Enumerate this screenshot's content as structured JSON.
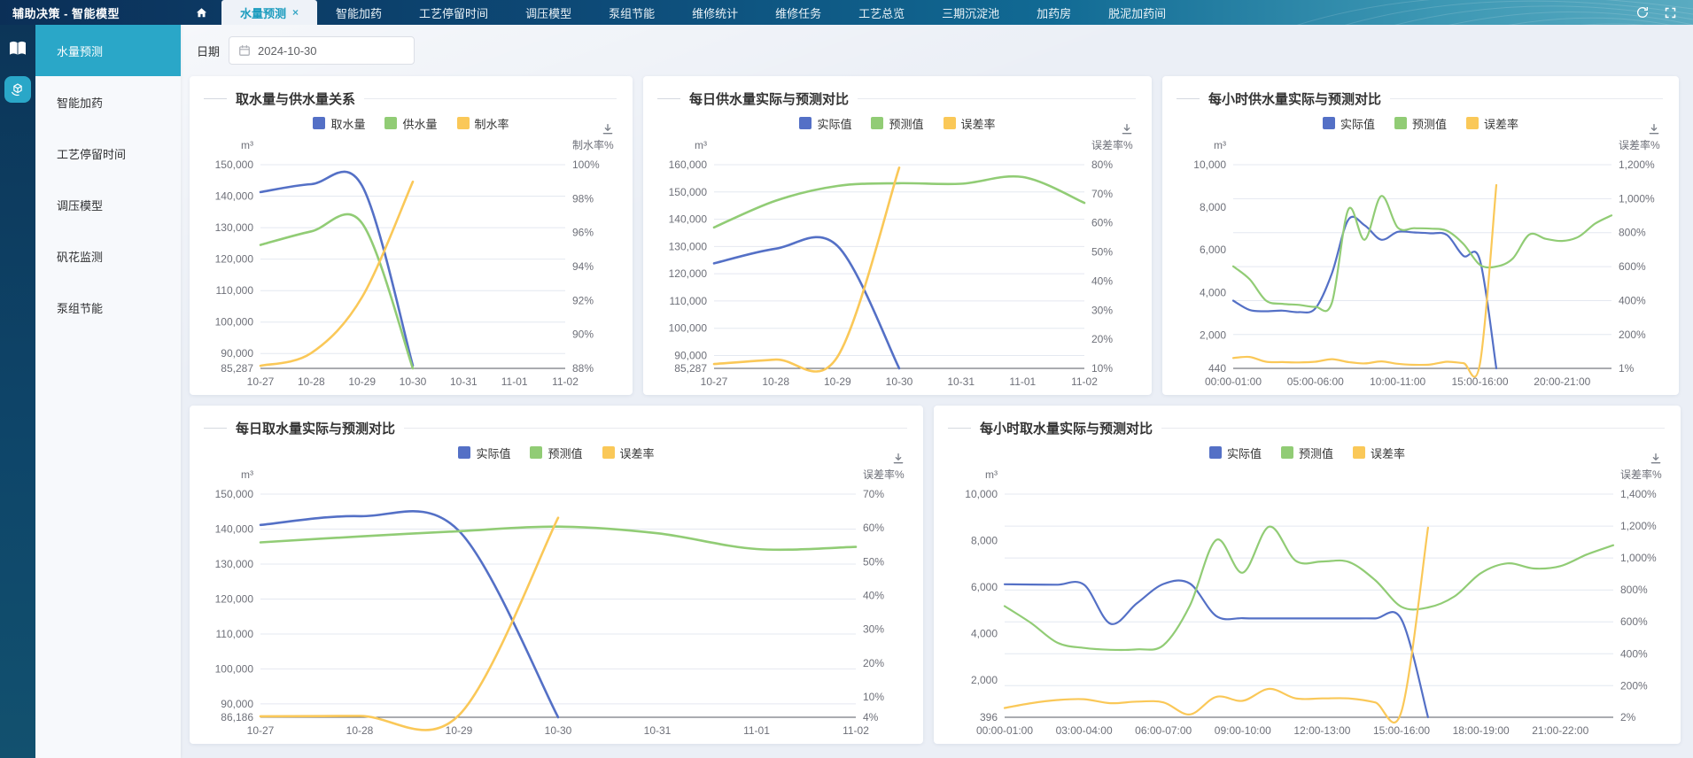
{
  "app": {
    "title": "辅助决策 - 智能模型"
  },
  "topnav": {
    "tabs": [
      {
        "label": "水量预测",
        "active": true,
        "closable": true
      },
      {
        "label": "智能加药",
        "active": false
      },
      {
        "label": "工艺停留时间",
        "active": false
      },
      {
        "label": "调压模型",
        "active": false
      },
      {
        "label": "泵组节能",
        "active": false
      },
      {
        "label": "维修统计",
        "active": false
      },
      {
        "label": "维修任务",
        "active": false
      },
      {
        "label": "工艺总览",
        "active": false
      },
      {
        "label": "三期沉淀池",
        "active": false
      },
      {
        "label": "加药房",
        "active": false
      },
      {
        "label": "脱泥加药间",
        "active": false
      }
    ],
    "icons": [
      "refresh-icon",
      "fullscreen-icon"
    ]
  },
  "sidebar": {
    "items": [
      {
        "label": "水量预测",
        "active": true
      },
      {
        "label": "智能加药",
        "active": false
      },
      {
        "label": "工艺停留时间",
        "active": false
      },
      {
        "label": "调压模型",
        "active": false
      },
      {
        "label": "矾花监测",
        "active": false
      },
      {
        "label": "泵组节能",
        "active": false
      }
    ]
  },
  "filters": {
    "date_label": "日期",
    "date_value": "2024-10-30"
  },
  "colors": {
    "series_blue": "#5470C6",
    "series_green": "#91CC75",
    "series_yellow": "#FAC858",
    "active_teal": "#2aa7c8",
    "axis_text": "#6E7079",
    "grid": "#e4e8f0"
  },
  "chart_data": [
    {
      "type": "line",
      "title": "取水量与供水量关系",
      "grid_axis": "left",
      "left_axis": {
        "unit": "m³",
        "min": 85287,
        "max": 150000,
        "ticks": [
          {
            "v": 85287,
            "label": "85,287"
          },
          {
            "v": 90000,
            "label": "90,000"
          },
          {
            "v": 100000,
            "label": "100,000"
          },
          {
            "v": 110000,
            "label": "110,000"
          },
          {
            "v": 120000,
            "label": "120,000"
          },
          {
            "v": 130000,
            "label": "130,000"
          },
          {
            "v": 140000,
            "label": "140,000"
          },
          {
            "v": 150000,
            "label": "150,000"
          }
        ]
      },
      "right_axis": {
        "title": "制水率%",
        "min": 88,
        "max": 100,
        "ticks": [
          {
            "v": 88,
            "label": "88%"
          },
          {
            "v": 90,
            "label": "90%"
          },
          {
            "v": 92,
            "label": "92%"
          },
          {
            "v": 94,
            "label": "94%"
          },
          {
            "v": 96,
            "label": "96%"
          },
          {
            "v": 98,
            "label": "98%"
          },
          {
            "v": 100,
            "label": "100%"
          }
        ]
      },
      "categories": [
        "10-27",
        "10-28",
        "10-29",
        "10-30",
        "10-31",
        "11-01",
        "11-02"
      ],
      "x_tick_indices": [
        0,
        1,
        2,
        3,
        4,
        5,
        6
      ],
      "series": [
        {
          "name": "取水量",
          "color": "#5470C6",
          "axis": "left",
          "values": [
            141300,
            143800,
            143300,
            86186,
            null,
            null,
            null
          ]
        },
        {
          "name": "供水量",
          "color": "#91CC75",
          "axis": "left",
          "values": [
            124500,
            128800,
            131400,
            85287,
            null,
            null,
            null
          ]
        },
        {
          "name": "制水率",
          "color": "#FAC858",
          "axis": "right",
          "values": [
            88.15,
            88.9,
            92.2,
            99.0,
            null,
            null,
            null
          ]
        }
      ]
    },
    {
      "type": "line",
      "title": "每日供水量实际与预测对比",
      "grid_axis": "left",
      "left_axis": {
        "unit": "m³",
        "min": 85287,
        "max": 160000,
        "ticks": [
          {
            "v": 85287,
            "label": "85,287"
          },
          {
            "v": 90000,
            "label": "90,000"
          },
          {
            "v": 100000,
            "label": "100,000"
          },
          {
            "v": 110000,
            "label": "110,000"
          },
          {
            "v": 120000,
            "label": "120,000"
          },
          {
            "v": 130000,
            "label": "130,000"
          },
          {
            "v": 140000,
            "label": "140,000"
          },
          {
            "v": 150000,
            "label": "150,000"
          },
          {
            "v": 160000,
            "label": "160,000"
          }
        ]
      },
      "right_axis": {
        "title": "误差率%",
        "min": 10,
        "max": 80,
        "ticks": [
          {
            "v": 10,
            "label": "10%"
          },
          {
            "v": 20,
            "label": "20%"
          },
          {
            "v": 30,
            "label": "30%"
          },
          {
            "v": 40,
            "label": "40%"
          },
          {
            "v": 50,
            "label": "50%"
          },
          {
            "v": 60,
            "label": "60%"
          },
          {
            "v": 70,
            "label": "70%"
          },
          {
            "v": 80,
            "label": "80%"
          }
        ]
      },
      "categories": [
        "10-27",
        "10-28",
        "10-29",
        "10-30",
        "10-31",
        "11-01",
        "11-02"
      ],
      "x_tick_indices": [
        0,
        1,
        2,
        3,
        4,
        5,
        6
      ],
      "series": [
        {
          "name": "实际值",
          "color": "#5470C6",
          "axis": "left",
          "values": [
            123800,
            129200,
            130200,
            85287,
            null,
            null,
            null
          ]
        },
        {
          "name": "预测值",
          "color": "#91CC75",
          "axis": "left",
          "values": [
            137000,
            146800,
            152200,
            153200,
            153000,
            155500,
            146000
          ]
        },
        {
          "name": "误差率",
          "color": "#FAC858",
          "axis": "right",
          "values": [
            11.5,
            13,
            14,
            79,
            null,
            null,
            null
          ]
        }
      ]
    },
    {
      "type": "line",
      "title": "每小时供水量实际与预测对比",
      "grid_axis": "right",
      "left_axis": {
        "unit": "m³",
        "min": 440,
        "max": 10000,
        "ticks": [
          {
            "v": 440,
            "label": "440"
          },
          {
            "v": 2000,
            "label": "2,000"
          },
          {
            "v": 4000,
            "label": "4,000"
          },
          {
            "v": 6000,
            "label": "6,000"
          },
          {
            "v": 8000,
            "label": "8,000"
          },
          {
            "v": 10000,
            "label": "10,000"
          }
        ]
      },
      "right_axis": {
        "title": "误差率%",
        "min": 1,
        "max": 1200,
        "ticks": [
          {
            "v": 1,
            "label": "1%"
          },
          {
            "v": 200,
            "label": "200%"
          },
          {
            "v": 400,
            "label": "400%"
          },
          {
            "v": 600,
            "label": "600%"
          },
          {
            "v": 800,
            "label": "800%"
          },
          {
            "v": 1000,
            "label": "1,000%"
          },
          {
            "v": 1200,
            "label": "1,200%"
          }
        ]
      },
      "categories": [
        "00:00-01:00",
        "01:00-02:00",
        "02:00-03:00",
        "03:00-04:00",
        "04:00-05:00",
        "05:00-06:00",
        "06:00-07:00",
        "07:00-08:00",
        "08:00-09:00",
        "09:00-10:00",
        "10:00-11:00",
        "11:00-12:00",
        "12:00-13:00",
        "13:00-14:00",
        "14:00-15:00",
        "15:00-16:00",
        "16:00-17:00",
        "17:00-18:00",
        "18:00-19:00",
        "19:00-20:00",
        "20:00-21:00",
        "21:00-22:00",
        "22:00-23:00",
        "23:00-24:00"
      ],
      "x_tick_indices": [
        0,
        5,
        10,
        15,
        20
      ],
      "series": [
        {
          "name": "实际值",
          "color": "#5470C6",
          "axis": "left",
          "values": [
            3620,
            3180,
            3120,
            3150,
            3080,
            3260,
            4900,
            7420,
            7150,
            6480,
            6850,
            6820,
            6780,
            6700,
            5720,
            5520,
            440,
            null,
            null,
            null,
            null,
            null,
            null,
            null
          ]
        },
        {
          "name": "预测值",
          "color": "#91CC75",
          "axis": "left",
          "values": [
            5230,
            4620,
            3620,
            3470,
            3420,
            3330,
            3520,
            7900,
            6480,
            8530,
            7050,
            7020,
            7000,
            6900,
            6280,
            5300,
            5220,
            5600,
            6720,
            6520,
            6420,
            6620,
            7230,
            7620
          ]
        },
        {
          "name": "误差率",
          "color": "#FAC858",
          "axis": "right",
          "values": [
            62,
            68,
            40,
            38,
            36,
            40,
            55,
            38,
            30,
            42,
            28,
            22,
            24,
            40,
            32,
            28,
            1080,
            null,
            null,
            null,
            null,
            null,
            null,
            null
          ]
        }
      ]
    },
    {
      "type": "line",
      "title": "每日取水量实际与预测对比",
      "grid_axis": "left",
      "left_axis": {
        "unit": "m³",
        "min": 86186,
        "max": 150000,
        "ticks": [
          {
            "v": 86186,
            "label": "86,186"
          },
          {
            "v": 90000,
            "label": "90,000"
          },
          {
            "v": 100000,
            "label": "100,000"
          },
          {
            "v": 110000,
            "label": "110,000"
          },
          {
            "v": 120000,
            "label": "120,000"
          },
          {
            "v": 130000,
            "label": "130,000"
          },
          {
            "v": 140000,
            "label": "140,000"
          },
          {
            "v": 150000,
            "label": "150,000"
          }
        ]
      },
      "right_axis": {
        "title": "误差率%",
        "min": 4,
        "max": 70,
        "ticks": [
          {
            "v": 4,
            "label": "4%"
          },
          {
            "v": 10,
            "label": "10%"
          },
          {
            "v": 20,
            "label": "20%"
          },
          {
            "v": 30,
            "label": "30%"
          },
          {
            "v": 40,
            "label": "40%"
          },
          {
            "v": 50,
            "label": "50%"
          },
          {
            "v": 60,
            "label": "60%"
          },
          {
            "v": 70,
            "label": "70%"
          }
        ]
      },
      "categories": [
        "10-27",
        "10-28",
        "10-29",
        "10-30",
        "10-31",
        "11-01",
        "11-02"
      ],
      "x_tick_indices": [
        0,
        1,
        2,
        3,
        4,
        5,
        6
      ],
      "series": [
        {
          "name": "实际值",
          "color": "#5470C6",
          "axis": "left",
          "values": [
            141200,
            143700,
            139500,
            86186,
            null,
            null,
            null
          ]
        },
        {
          "name": "预测值",
          "color": "#91CC75",
          "axis": "left",
          "values": [
            136200,
            137900,
            139400,
            140700,
            138800,
            134300,
            134900
          ]
        },
        {
          "name": "误差率",
          "color": "#FAC858",
          "axis": "right",
          "values": [
            4.3,
            4.4,
            4.6,
            63,
            null,
            null,
            null
          ]
        }
      ]
    },
    {
      "type": "line",
      "title": "每小时取水量实际与预测对比",
      "grid_axis": "right",
      "left_axis": {
        "unit": "m³",
        "min": 396,
        "max": 10000,
        "ticks": [
          {
            "v": 396,
            "label": "396"
          },
          {
            "v": 2000,
            "label": "2,000"
          },
          {
            "v": 4000,
            "label": "4,000"
          },
          {
            "v": 6000,
            "label": "6,000"
          },
          {
            "v": 8000,
            "label": "8,000"
          },
          {
            "v": 10000,
            "label": "10,000"
          }
        ]
      },
      "right_axis": {
        "title": "误差率%",
        "min": 2,
        "max": 1400,
        "ticks": [
          {
            "v": 2,
            "label": "2%"
          },
          {
            "v": 200,
            "label": "200%"
          },
          {
            "v": 400,
            "label": "400%"
          },
          {
            "v": 600,
            "label": "600%"
          },
          {
            "v": 800,
            "label": "800%"
          },
          {
            "v": 1000,
            "label": "1,000%"
          },
          {
            "v": 1200,
            "label": "1,200%"
          },
          {
            "v": 1400,
            "label": "1,400%"
          }
        ]
      },
      "categories": [
        "00:00-01:00",
        "01:00-02:00",
        "02:00-03:00",
        "03:00-04:00",
        "04:00-05:00",
        "05:00-06:00",
        "06:00-07:00",
        "07:00-08:00",
        "08:00-09:00",
        "09:00-10:00",
        "10:00-11:00",
        "11:00-12:00",
        "12:00-13:00",
        "13:00-14:00",
        "14:00-15:00",
        "15:00-16:00",
        "16:00-17:00",
        "17:00-18:00",
        "18:00-19:00",
        "19:00-20:00",
        "20:00-21:00",
        "21:00-22:00",
        "22:00-23:00",
        "23:00-24:00"
      ],
      "x_tick_indices": [
        0,
        3,
        6,
        9,
        12,
        15,
        18,
        21
      ],
      "series": [
        {
          "name": "实际值",
          "color": "#5470C6",
          "axis": "left",
          "values": [
            6120,
            6110,
            6100,
            6100,
            4420,
            5300,
            6130,
            6150,
            4750,
            4660,
            4650,
            4650,
            4650,
            4650,
            4650,
            4600,
            396,
            null,
            null,
            null,
            null,
            null,
            null,
            null
          ]
        },
        {
          "name": "预测值",
          "color": "#91CC75",
          "axis": "left",
          "values": [
            5180,
            4450,
            3600,
            3380,
            3300,
            3320,
            3500,
            5200,
            8030,
            6620,
            8600,
            7130,
            7100,
            7080,
            6300,
            5150,
            5120,
            5600,
            6600,
            7020,
            6800,
            6900,
            7400,
            7800
          ]
        },
        {
          "name": "误差率",
          "color": "#FAC858",
          "axis": "right",
          "values": [
            60,
            90,
            110,
            115,
            90,
            100,
            95,
            20,
            130,
            105,
            180,
            120,
            120,
            120,
            95,
            40,
            1190,
            null,
            null,
            null,
            null,
            null,
            null,
            null
          ]
        }
      ]
    }
  ]
}
